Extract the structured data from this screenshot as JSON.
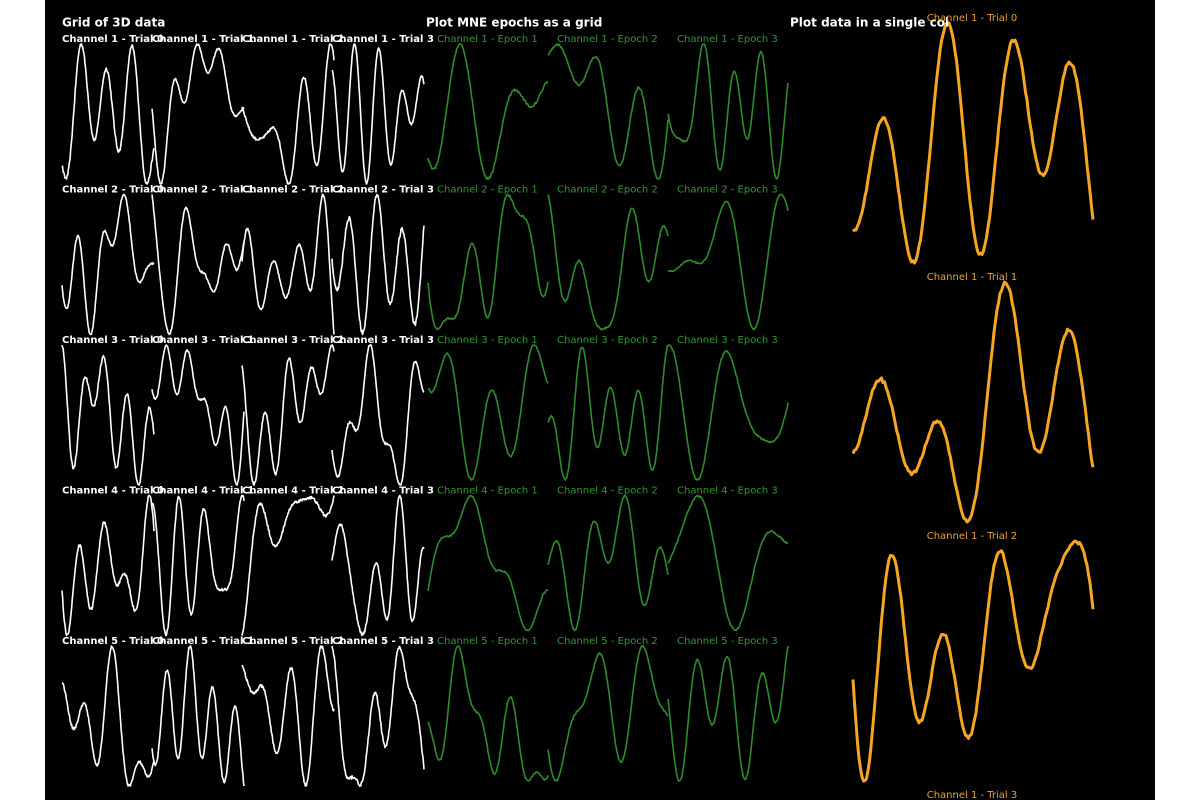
{
  "grid": {
    "title": "Grid of 3D data",
    "rows": [
      [
        "Channel 1 - Trial 0",
        "Channel 1 - Trial 1",
        "Channel 1 - Trial 2",
        "Channel 1 - Trial 3"
      ],
      [
        "Channel 2 - Trial 0",
        "Channel 2 - Trial 1",
        "Channel 2 - Trial 2",
        "Channel 2 - Trial 3"
      ],
      [
        "Channel 3 - Trial 0",
        "Channel 3 - Trial 1",
        "Channel 3 - Trial 2",
        "Channel 3 - Trial 3"
      ],
      [
        "Channel 4 - Trial 0",
        "Channel 4 - Trial 1",
        "Channel 4 - Trial 2",
        "Channel 4 - Trial 3"
      ],
      [
        "Channel 5 - Trial 0",
        "Channel 5 - Trial 1",
        "Channel 5 - Trial 2",
        "Channel 5 - Trial 3"
      ]
    ]
  },
  "epochs": {
    "title": "Plot MNE epochs as a grid",
    "rows": [
      [
        "Channel 1 - Epoch 1",
        "Channel 1 - Epoch 2",
        "Channel 1 - Epoch 3"
      ],
      [
        "Channel 2 - Epoch 1",
        "Channel 2 - Epoch 2",
        "Channel 2 - Epoch 3"
      ],
      [
        "Channel 3 - Epoch 1",
        "Channel 3 - Epoch 2",
        "Channel 3 - Epoch 3"
      ],
      [
        "Channel 4 - Epoch 1",
        "Channel 4 - Epoch 2",
        "Channel 4 - Epoch 3"
      ],
      [
        "Channel 5 - Epoch 1",
        "Channel 5 - Epoch 2",
        "Channel 5 - Epoch 3"
      ]
    ]
  },
  "column": {
    "title": "Plot data in a single col",
    "plots": [
      "Channel 1 - Trial 0",
      "Channel 1 - Trial 1",
      "Channel 1 - Trial 2",
      "Channel 1 - Trial 3"
    ]
  }
}
